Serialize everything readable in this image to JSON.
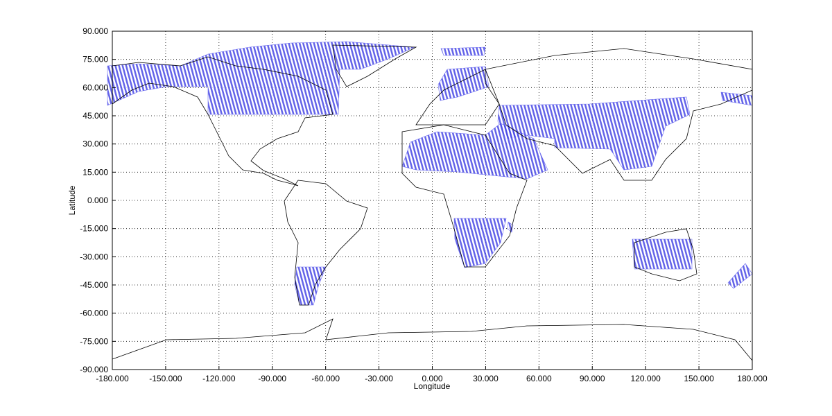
{
  "chart_data": {
    "type": "map",
    "xlabel": "Longitude",
    "ylabel": "Latitude",
    "xlim": [
      -180,
      180
    ],
    "ylim": [
      -90,
      90
    ],
    "grid": true,
    "xticks": [
      {
        "value": -180,
        "label": "-180.000"
      },
      {
        "value": -150,
        "label": "-150.000"
      },
      {
        "value": -120,
        "label": "-120.000"
      },
      {
        "value": -90,
        "label": "-90.000"
      },
      {
        "value": -60,
        "label": "-60.000"
      },
      {
        "value": -30,
        "label": "-30.000"
      },
      {
        "value": 0,
        "label": "0.000"
      },
      {
        "value": 30,
        "label": "30.000"
      },
      {
        "value": 60,
        "label": "60.000"
      },
      {
        "value": 90,
        "label": "90.000"
      },
      {
        "value": 120,
        "label": "120.000"
      },
      {
        "value": 150,
        "label": "150.000"
      },
      {
        "value": 180,
        "label": "180.000"
      }
    ],
    "yticks": [
      {
        "value": 90,
        "label": "90.000"
      },
      {
        "value": 75,
        "label": "75.000"
      },
      {
        "value": 60,
        "label": "60.000"
      },
      {
        "value": 45,
        "label": "45.000"
      },
      {
        "value": 30,
        "label": "30.000"
      },
      {
        "value": 15,
        "label": "15.000"
      },
      {
        "value": 0,
        "label": "0.000"
      },
      {
        "value": -15,
        "label": "-15.000"
      },
      {
        "value": -30,
        "label": "-30.000"
      },
      {
        "value": -45,
        "label": "-45.000"
      },
      {
        "value": -60,
        "label": "-60.000"
      },
      {
        "value": -75,
        "label": "-75.000"
      },
      {
        "value": -90,
        "label": "-90.000"
      }
    ]
  }
}
